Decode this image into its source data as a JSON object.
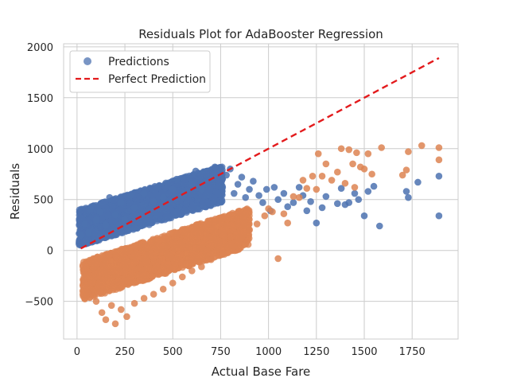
{
  "chart_data": {
    "type": "scatter",
    "title": "Residuals Plot for AdaBooster Regression",
    "xlabel": "Actual Base Fare",
    "ylabel": "Residuals",
    "xlim": [
      -70,
      1990
    ],
    "ylim": [
      -870,
      2030
    ],
    "xticks": [
      0,
      250,
      500,
      750,
      1000,
      1250,
      1500,
      1750
    ],
    "xtick_labels": [
      "0",
      "250",
      "500",
      "750",
      "1000",
      "1250",
      "1500",
      "1750"
    ],
    "yticks": [
      -500,
      0,
      500,
      1000,
      1500,
      2000
    ],
    "ytick_labels": [
      "−500",
      "0",
      "500",
      "1000",
      "1500",
      "2000"
    ],
    "grid": true,
    "legend_placement": "top-left",
    "colors": {
      "predictions": "#4c72b0",
      "residuals": "#dd8452",
      "perfect_line": "#e31a1c"
    },
    "series": [
      {
        "name": "Predictions",
        "kind": "scatter",
        "color": "#4c72b0",
        "dense_band": {
          "x_range": [
            10,
            760
          ],
          "y_center_at_x_start": 220,
          "slope": 0.58,
          "spread": 180
        },
        "points": [
          [
            20,
            150
          ],
          [
            40,
            260
          ],
          [
            60,
            180
          ],
          [
            70,
            410
          ],
          [
            100,
            300
          ],
          [
            120,
            380
          ],
          [
            150,
            250
          ],
          [
            170,
            520
          ],
          [
            200,
            350
          ],
          [
            230,
            470
          ],
          [
            250,
            300
          ],
          [
            280,
            540
          ],
          [
            300,
            420
          ],
          [
            350,
            560
          ],
          [
            400,
            480
          ],
          [
            420,
            620
          ],
          [
            450,
            520
          ],
          [
            500,
            600
          ],
          [
            520,
            700
          ],
          [
            560,
            560
          ],
          [
            600,
            650
          ],
          [
            620,
            780
          ],
          [
            650,
            600
          ],
          [
            700,
            700
          ],
          [
            720,
            820
          ],
          [
            760,
            620
          ],
          [
            780,
            740
          ],
          [
            800,
            800
          ],
          [
            820,
            560
          ],
          [
            840,
            650
          ],
          [
            860,
            720
          ],
          [
            880,
            520
          ],
          [
            900,
            600
          ],
          [
            920,
            680
          ],
          [
            950,
            540
          ],
          [
            970,
            470
          ],
          [
            990,
            600
          ],
          [
            1010,
            390
          ],
          [
            1030,
            620
          ],
          [
            1050,
            500
          ],
          [
            1080,
            560
          ],
          [
            1100,
            430
          ],
          [
            1130,
            470
          ],
          [
            1160,
            620
          ],
          [
            1180,
            540
          ],
          [
            1200,
            390
          ],
          [
            1220,
            480
          ],
          [
            1250,
            270
          ],
          [
            1280,
            420
          ],
          [
            1300,
            530
          ],
          [
            1360,
            460
          ],
          [
            1380,
            610
          ],
          [
            1400,
            450
          ],
          [
            1420,
            470
          ],
          [
            1450,
            560
          ],
          [
            1470,
            500
          ],
          [
            1500,
            340
          ],
          [
            1520,
            580
          ],
          [
            1550,
            630
          ],
          [
            1580,
            240
          ],
          [
            1720,
            580
          ],
          [
            1730,
            520
          ],
          [
            1780,
            670
          ],
          [
            1890,
            730
          ],
          [
            1890,
            340
          ]
        ]
      },
      {
        "name": "",
        "kind": "scatter",
        "color": "#dd8452",
        "dense_band": {
          "x_range": [
            30,
            900
          ],
          "y_center_at_x_start": -300,
          "slope": 0.61,
          "spread": 190
        },
        "points": [
          [
            40,
            -230
          ],
          [
            60,
            -420
          ],
          [
            100,
            -500
          ],
          [
            130,
            -610
          ],
          [
            150,
            -680
          ],
          [
            180,
            -540
          ],
          [
            200,
            -720
          ],
          [
            230,
            -580
          ],
          [
            260,
            -650
          ],
          [
            300,
            -520
          ],
          [
            350,
            -470
          ],
          [
            400,
            -430
          ],
          [
            450,
            -380
          ],
          [
            500,
            -320
          ],
          [
            550,
            -260
          ],
          [
            600,
            -200
          ],
          [
            650,
            -160
          ],
          [
            700,
            -90
          ],
          [
            760,
            -30
          ],
          [
            820,
            40
          ],
          [
            860,
            120
          ],
          [
            900,
            200
          ],
          [
            940,
            260
          ],
          [
            980,
            340
          ],
          [
            1000,
            410
          ],
          [
            1020,
            380
          ],
          [
            1050,
            -80
          ],
          [
            1080,
            360
          ],
          [
            1100,
            270
          ],
          [
            1130,
            530
          ],
          [
            1160,
            520
          ],
          [
            1180,
            690
          ],
          [
            1200,
            610
          ],
          [
            1230,
            730
          ],
          [
            1250,
            600
          ],
          [
            1260,
            950
          ],
          [
            1280,
            730
          ],
          [
            1300,
            850
          ],
          [
            1330,
            690
          ],
          [
            1360,
            770
          ],
          [
            1380,
            1000
          ],
          [
            1400,
            660
          ],
          [
            1420,
            990
          ],
          [
            1440,
            850
          ],
          [
            1450,
            620
          ],
          [
            1460,
            960
          ],
          [
            1480,
            820
          ],
          [
            1500,
            800
          ],
          [
            1520,
            950
          ],
          [
            1540,
            750
          ],
          [
            1590,
            1010
          ],
          [
            1700,
            740
          ],
          [
            1720,
            790
          ],
          [
            1730,
            970
          ],
          [
            1800,
            1030
          ],
          [
            1890,
            1010
          ],
          [
            1890,
            890
          ]
        ]
      },
      {
        "name": "Perfect Prediction",
        "kind": "line",
        "color": "#e31a1c",
        "dashed": true,
        "x": [
          20,
          1890
        ],
        "y": [
          20,
          1890
        ]
      }
    ]
  }
}
